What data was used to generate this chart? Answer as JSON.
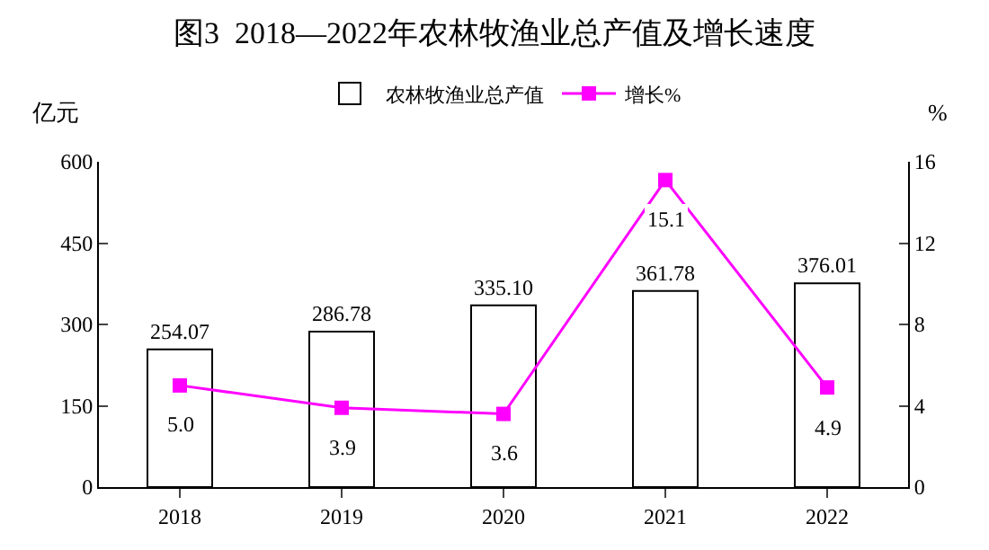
{
  "chart_data": {
    "type": "bar",
    "title": "图3  2018—2022年农林牧渔业总产值及增长速度",
    "ylabel": "亿元",
    "y2label": "%",
    "categories": [
      "2018",
      "2019",
      "2020",
      "2021",
      "2022"
    ],
    "series": [
      {
        "name": "农林牧渔业总产值",
        "color": "#ffffff",
        "values": [
          254.07,
          286.78,
          335.1,
          361.78,
          376.01
        ],
        "value_labels": [
          "254.07",
          "286.78",
          "335.10",
          "361.78",
          "376.01"
        ]
      },
      {
        "name": "增长%",
        "type": "line",
        "axis": "y2",
        "color": "#ff00ff",
        "values": [
          5.0,
          3.9,
          3.6,
          15.1,
          4.9
        ],
        "value_labels": [
          "5.0",
          "3.9",
          "3.6",
          "15.1",
          "4.9"
        ]
      }
    ],
    "ylim": [
      0,
      600
    ],
    "yticks": [
      0,
      150,
      300,
      450,
      600
    ],
    "y2lim": [
      0,
      16
    ],
    "y2ticks": [
      0,
      4,
      8,
      12,
      16
    ],
    "legend": "top",
    "marker": "square",
    "line_style": "solid"
  }
}
